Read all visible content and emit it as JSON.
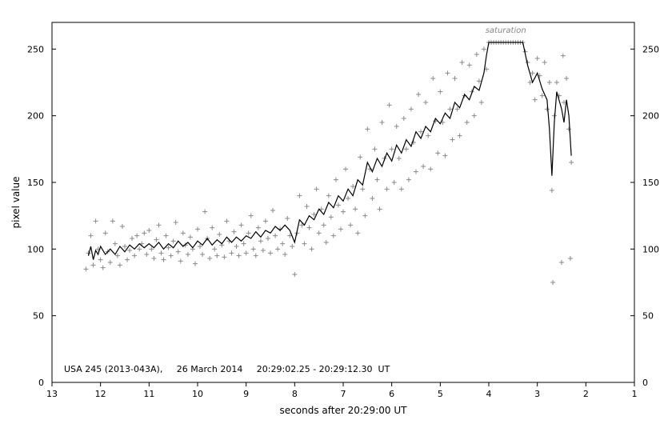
{
  "chart_data": {
    "type": "scatter",
    "title": "",
    "xlabel": "seconds after 20:29:00 UT",
    "ylabel": "pixel value",
    "x_reversed": true,
    "xlim": [
      13,
      1
    ],
    "ylim": [
      0,
      270
    ],
    "x_ticks": [
      13,
      12,
      11,
      10,
      9,
      8,
      7,
      6,
      5,
      4,
      3,
      2,
      1
    ],
    "y_ticks": [
      0,
      50,
      100,
      150,
      200,
      250
    ],
    "right_axis_labels": true,
    "grid": false,
    "annotation": "USA 245 (2013-043A),     26 March 2014     20:29:02.25 - 20:29:12.30  UT",
    "saturation_label": "saturation",
    "saturation_level": 255,
    "saturation_range": [
      4.0,
      3.3
    ],
    "colors": {
      "points": "#8a8a8a",
      "line": "#000000",
      "axis": "#000000"
    },
    "series": [
      {
        "marker": "plus",
        "points": [
          [
            12.3,
            85
          ],
          [
            12.25,
            97
          ],
          [
            12.2,
            110
          ],
          [
            12.15,
            88
          ],
          [
            12.1,
            121
          ],
          [
            12.05,
            100
          ],
          [
            12.0,
            92
          ],
          [
            11.95,
            86
          ],
          [
            11.9,
            112
          ],
          [
            11.85,
            98
          ],
          [
            11.8,
            90
          ],
          [
            11.75,
            121
          ],
          [
            11.7,
            104
          ],
          [
            11.65,
            95
          ],
          [
            11.6,
            88
          ],
          [
            11.55,
            117
          ],
          [
            11.5,
            102
          ],
          [
            11.45,
            92
          ],
          [
            11.4,
            99
          ],
          [
            11.35,
            108
          ],
          [
            11.3,
            95
          ],
          [
            11.25,
            110
          ],
          [
            11.2,
            100
          ],
          [
            11.15,
            104
          ],
          [
            11.1,
            112
          ],
          [
            11.05,
            96
          ],
          [
            11.0,
            114
          ],
          [
            10.95,
            100
          ],
          [
            10.9,
            93
          ],
          [
            10.85,
            107
          ],
          [
            10.8,
            118
          ],
          [
            10.75,
            97
          ],
          [
            10.7,
            92
          ],
          [
            10.65,
            110
          ],
          [
            10.6,
            101
          ],
          [
            10.55,
            95
          ],
          [
            10.5,
            106
          ],
          [
            10.45,
            120
          ],
          [
            10.4,
            98
          ],
          [
            10.35,
            91
          ],
          [
            10.3,
            112
          ],
          [
            10.25,
            103
          ],
          [
            10.2,
            96
          ],
          [
            10.15,
            109
          ],
          [
            10.1,
            100
          ],
          [
            10.05,
            89
          ],
          [
            10.0,
            115
          ],
          [
            9.95,
            102
          ],
          [
            9.9,
            96
          ],
          [
            9.85,
            128
          ],
          [
            9.8,
            108
          ],
          [
            9.75,
            93
          ],
          [
            9.7,
            116
          ],
          [
            9.65,
            100
          ],
          [
            9.6,
            95
          ],
          [
            9.55,
            111
          ],
          [
            9.5,
            103
          ],
          [
            9.45,
            94
          ],
          [
            9.4,
            121
          ],
          [
            9.35,
            106
          ],
          [
            9.3,
            97
          ],
          [
            9.25,
            113
          ],
          [
            9.2,
            102
          ],
          [
            9.15,
            95
          ],
          [
            9.1,
            118
          ],
          [
            9.05,
            104
          ],
          [
            9.0,
            97
          ],
          [
            8.95,
            112
          ],
          [
            8.9,
            125
          ],
          [
            8.85,
            100
          ],
          [
            8.8,
            95
          ],
          [
            8.75,
            116
          ],
          [
            8.7,
            106
          ],
          [
            8.65,
            99
          ],
          [
            8.6,
            121
          ],
          [
            8.55,
            108
          ],
          [
            8.5,
            97
          ],
          [
            8.45,
            129
          ],
          [
            8.4,
            110
          ],
          [
            8.35,
            100
          ],
          [
            8.3,
            115
          ],
          [
            8.25,
            104
          ],
          [
            8.2,
            96
          ],
          [
            8.15,
            123
          ],
          [
            8.1,
            110
          ],
          [
            8.05,
            102
          ],
          [
            8.0,
            81
          ],
          [
            7.95,
            112
          ],
          [
            7.9,
            140
          ],
          [
            7.85,
            118
          ],
          [
            7.8,
            104
          ],
          [
            7.75,
            132
          ],
          [
            7.7,
            116
          ],
          [
            7.65,
            100
          ],
          [
            7.6,
            126
          ],
          [
            7.55,
            145
          ],
          [
            7.5,
            112
          ],
          [
            7.45,
            130
          ],
          [
            7.4,
            118
          ],
          [
            7.35,
            105
          ],
          [
            7.3,
            140
          ],
          [
            7.25,
            124
          ],
          [
            7.2,
            110
          ],
          [
            7.15,
            152
          ],
          [
            7.1,
            133
          ],
          [
            7.05,
            115
          ],
          [
            7.0,
            128
          ],
          [
            6.95,
            160
          ],
          [
            6.9,
            138
          ],
          [
            6.85,
            118
          ],
          [
            6.8,
            147
          ],
          [
            6.75,
            130
          ],
          [
            6.7,
            112
          ],
          [
            6.65,
            169
          ],
          [
            6.6,
            145
          ],
          [
            6.55,
            125
          ],
          [
            6.5,
            190
          ],
          [
            6.45,
            160
          ],
          [
            6.4,
            138
          ],
          [
            6.35,
            175
          ],
          [
            6.3,
            152
          ],
          [
            6.25,
            130
          ],
          [
            6.2,
            195
          ],
          [
            6.15,
            168
          ],
          [
            6.1,
            145
          ],
          [
            6.05,
            208
          ],
          [
            6.0,
            175
          ],
          [
            5.95,
            150
          ],
          [
            5.9,
            192
          ],
          [
            5.85,
            168
          ],
          [
            5.8,
            145
          ],
          [
            5.75,
            198
          ],
          [
            5.7,
            175
          ],
          [
            5.65,
            152
          ],
          [
            5.6,
            205
          ],
          [
            5.55,
            180
          ],
          [
            5.5,
            158
          ],
          [
            5.45,
            216
          ],
          [
            5.4,
            188
          ],
          [
            5.35,
            162
          ],
          [
            5.3,
            210
          ],
          [
            5.25,
            185
          ],
          [
            5.2,
            160
          ],
          [
            5.15,
            228
          ],
          [
            5.1,
            196
          ],
          [
            5.05,
            172
          ],
          [
            5.0,
            218
          ],
          [
            4.95,
            195
          ],
          [
            4.9,
            170
          ],
          [
            4.85,
            232
          ],
          [
            4.8,
            205
          ],
          [
            4.75,
            182
          ],
          [
            4.7,
            228
          ],
          [
            4.65,
            205
          ],
          [
            4.6,
            185
          ],
          [
            4.55,
            240
          ],
          [
            4.5,
            215
          ],
          [
            4.45,
            195
          ],
          [
            4.4,
            238
          ],
          [
            4.35,
            218
          ],
          [
            4.3,
            200
          ],
          [
            4.25,
            246
          ],
          [
            4.2,
            226
          ],
          [
            4.15,
            210
          ],
          [
            4.1,
            250
          ],
          [
            4.05,
            235
          ],
          [
            4.0,
            255
          ],
          [
            3.95,
            255
          ],
          [
            3.9,
            255
          ],
          [
            3.85,
            255
          ],
          [
            3.8,
            255
          ],
          [
            3.75,
            255
          ],
          [
            3.7,
            255
          ],
          [
            3.65,
            255
          ],
          [
            3.6,
            255
          ],
          [
            3.55,
            255
          ],
          [
            3.5,
            255
          ],
          [
            3.45,
            255
          ],
          [
            3.4,
            255
          ],
          [
            3.35,
            255
          ],
          [
            3.3,
            255
          ],
          [
            3.25,
            248
          ],
          [
            3.2,
            240
          ],
          [
            3.15,
            225
          ],
          [
            3.1,
            232
          ],
          [
            3.05,
            212
          ],
          [
            3.0,
            243
          ],
          [
            2.95,
            230
          ],
          [
            2.9,
            215
          ],
          [
            2.85,
            240
          ],
          [
            2.8,
            205
          ],
          [
            2.75,
            225
          ],
          [
            2.7,
            144
          ],
          [
            2.68,
            75
          ],
          [
            2.65,
            200
          ],
          [
            2.6,
            225
          ],
          [
            2.55,
            215
          ],
          [
            2.5,
            90
          ],
          [
            2.47,
            245
          ],
          [
            2.45,
            210
          ],
          [
            2.4,
            228
          ],
          [
            2.35,
            190
          ],
          [
            2.32,
            93
          ],
          [
            2.3,
            165
          ]
        ]
      },
      {
        "marker": "line",
        "points": [
          [
            12.25,
            95
          ],
          [
            12.2,
            102
          ],
          [
            12.15,
            92
          ],
          [
            12.1,
            99
          ],
          [
            12.05,
            96
          ],
          [
            12.0,
            102
          ],
          [
            11.9,
            96
          ],
          [
            11.8,
            100
          ],
          [
            11.7,
            96
          ],
          [
            11.6,
            102
          ],
          [
            11.5,
            98
          ],
          [
            11.4,
            103
          ],
          [
            11.3,
            100
          ],
          [
            11.2,
            104
          ],
          [
            11.1,
            101
          ],
          [
            11.0,
            104
          ],
          [
            10.9,
            101
          ],
          [
            10.8,
            105
          ],
          [
            10.7,
            100
          ],
          [
            10.6,
            104
          ],
          [
            10.5,
            101
          ],
          [
            10.4,
            106
          ],
          [
            10.3,
            102
          ],
          [
            10.2,
            105
          ],
          [
            10.1,
            101
          ],
          [
            10.0,
            106
          ],
          [
            9.9,
            103
          ],
          [
            9.8,
            108
          ],
          [
            9.7,
            103
          ],
          [
            9.6,
            107
          ],
          [
            9.5,
            104
          ],
          [
            9.4,
            109
          ],
          [
            9.3,
            105
          ],
          [
            9.2,
            109
          ],
          [
            9.1,
            106
          ],
          [
            9.0,
            110
          ],
          [
            8.9,
            108
          ],
          [
            8.8,
            113
          ],
          [
            8.7,
            109
          ],
          [
            8.6,
            114
          ],
          [
            8.5,
            112
          ],
          [
            8.4,
            117
          ],
          [
            8.3,
            114
          ],
          [
            8.2,
            118
          ],
          [
            8.1,
            114
          ],
          [
            8.0,
            105
          ],
          [
            7.9,
            122
          ],
          [
            7.8,
            118
          ],
          [
            7.7,
            125
          ],
          [
            7.6,
            122
          ],
          [
            7.5,
            130
          ],
          [
            7.4,
            126
          ],
          [
            7.3,
            135
          ],
          [
            7.2,
            131
          ],
          [
            7.1,
            140
          ],
          [
            7.0,
            136
          ],
          [
            6.9,
            145
          ],
          [
            6.8,
            140
          ],
          [
            6.7,
            152
          ],
          [
            6.6,
            148
          ],
          [
            6.5,
            165
          ],
          [
            6.4,
            158
          ],
          [
            6.3,
            168
          ],
          [
            6.2,
            162
          ],
          [
            6.1,
            172
          ],
          [
            6.0,
            166
          ],
          [
            5.9,
            178
          ],
          [
            5.8,
            172
          ],
          [
            5.7,
            182
          ],
          [
            5.6,
            177
          ],
          [
            5.5,
            188
          ],
          [
            5.4,
            183
          ],
          [
            5.3,
            192
          ],
          [
            5.2,
            188
          ],
          [
            5.1,
            198
          ],
          [
            5.0,
            194
          ],
          [
            4.9,
            202
          ],
          [
            4.8,
            198
          ],
          [
            4.7,
            210
          ],
          [
            4.6,
            206
          ],
          [
            4.5,
            216
          ],
          [
            4.4,
            212
          ],
          [
            4.3,
            222
          ],
          [
            4.2,
            219
          ],
          [
            4.1,
            232
          ],
          [
            4.05,
            245
          ],
          [
            4.0,
            255
          ],
          [
            3.3,
            255
          ],
          [
            3.2,
            238
          ],
          [
            3.1,
            225
          ],
          [
            3.0,
            232
          ],
          [
            2.9,
            220
          ],
          [
            2.8,
            212
          ],
          [
            2.75,
            190
          ],
          [
            2.7,
            155
          ],
          [
            2.65,
            195
          ],
          [
            2.6,
            218
          ],
          [
            2.5,
            205
          ],
          [
            2.45,
            195
          ],
          [
            2.4,
            212
          ],
          [
            2.35,
            200
          ],
          [
            2.3,
            170
          ]
        ]
      }
    ]
  }
}
